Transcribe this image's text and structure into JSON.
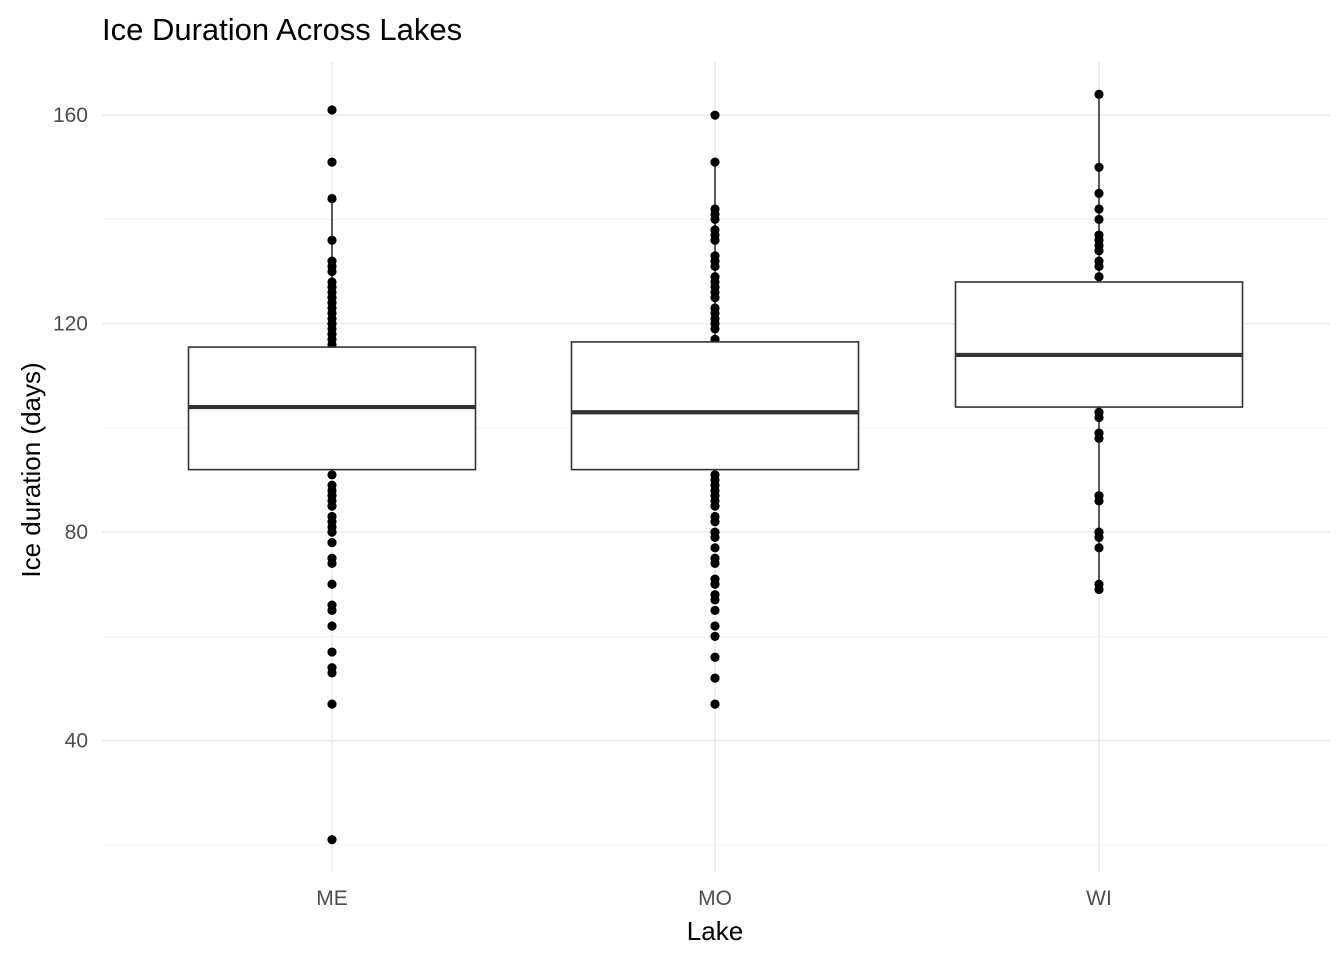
{
  "chart_data": {
    "type": "boxplot",
    "title": "Ice Duration Across Lakes",
    "xlabel": "Lake",
    "ylabel": "Ice duration (days)",
    "ylim": [
      14.8,
      170.2
    ],
    "y_ticks": [
      40,
      80,
      120,
      160
    ],
    "y_minor_ticks": [
      20,
      60,
      100,
      140
    ],
    "grid": true,
    "categories": [
      "ME",
      "MO",
      "WI"
    ],
    "boxes": [
      {
        "name": "ME",
        "q1": 92,
        "median": 104,
        "q3": 115.5,
        "whisker_low": 92,
        "whisker_high": 144,
        "points": [
          161,
          151,
          144,
          136,
          132,
          131,
          130,
          128,
          127,
          126,
          125,
          124,
          123,
          122,
          121,
          120,
          119,
          118,
          117,
          116,
          91,
          89,
          88,
          87,
          86,
          85,
          83,
          82,
          81,
          80,
          78,
          75,
          74,
          70,
          66,
          65,
          62,
          57,
          54,
          53,
          47,
          21
        ]
      },
      {
        "name": "MO",
        "q1": 92,
        "median": 103,
        "q3": 116.5,
        "whisker_low": 92,
        "whisker_high": 151,
        "points": [
          160,
          151,
          142,
          141,
          140,
          138,
          137,
          136,
          133,
          132,
          131,
          129,
          128,
          127,
          126,
          125,
          123,
          122,
          121,
          120,
          119,
          117,
          91,
          90,
          89,
          88,
          87,
          86,
          85,
          83,
          82,
          80,
          79,
          77,
          75,
          74,
          71,
          70,
          68,
          67,
          65,
          62,
          60,
          56,
          52,
          47
        ]
      },
      {
        "name": "WI",
        "q1": 104,
        "median": 114,
        "q3": 128,
        "whisker_low": 69,
        "whisker_high": 164,
        "points": [
          164,
          150,
          145,
          142,
          140,
          137,
          136,
          135,
          134,
          132,
          131,
          129,
          103,
          102,
          99,
          98,
          87,
          86,
          80,
          79,
          77,
          70,
          69
        ]
      }
    ]
  }
}
